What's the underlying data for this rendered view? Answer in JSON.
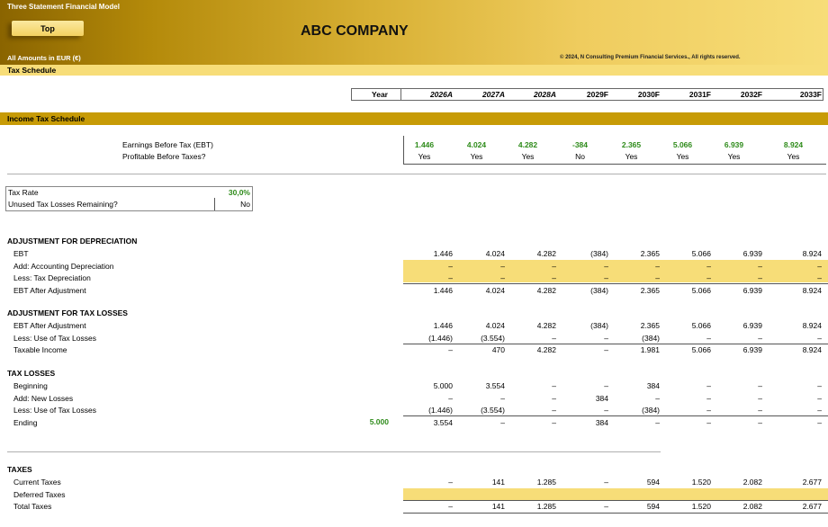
{
  "header": {
    "app_title": "Three Statement Financial Model",
    "top_button": "Top",
    "company": "ABC COMPANY",
    "amounts_label": "All Amounts in  EUR (€)",
    "copyright": "© 2024, N Consulting Premium Financial Services., All rights reserved."
  },
  "schedule_title": "Tax Schedule",
  "year_label": "Year",
  "years": [
    "2026A",
    "2027A",
    "2028A",
    "2029F",
    "2030F",
    "2031F",
    "2032F",
    "2033F"
  ],
  "income_tax_title": "Income Tax Schedule",
  "summary": {
    "ebt_label": "Earnings Before Tax (EBT)",
    "ebt": [
      "1.446",
      "4.024",
      "4.282",
      "-384",
      "2.365",
      "5.066",
      "6.939",
      "8.924"
    ],
    "profitable_label": "Profitable Before Taxes?",
    "profitable": [
      "Yes",
      "Yes",
      "Yes",
      "No",
      "Yes",
      "Yes",
      "Yes",
      "Yes"
    ]
  },
  "inputs": {
    "tax_rate_label": "Tax Rate",
    "tax_rate": "30,0%",
    "unused_label": "Unused Tax Losses Remaining?",
    "unused": "No"
  },
  "depreciation": {
    "title": "ADJUSTMENT FOR DEPRECIATION",
    "rows": [
      {
        "label": "EBT",
        "values": [
          "1.446",
          "4.024",
          "4.282",
          "(384)",
          "2.365",
          "5.066",
          "6.939",
          "8.924"
        ]
      },
      {
        "label": "Add: Accounting Depreciation",
        "values": [
          "–",
          "–",
          "–",
          "–",
          "–",
          "–",
          "–",
          "–"
        ]
      },
      {
        "label": "Less: Tax Depreciation",
        "values": [
          "–",
          "–",
          "–",
          "–",
          "–",
          "–",
          "–",
          "–"
        ]
      },
      {
        "label": "EBT After Adjustment",
        "values": [
          "1.446",
          "4.024",
          "4.282",
          "(384)",
          "2.365",
          "5.066",
          "6.939",
          "8.924"
        ]
      }
    ]
  },
  "tax_loss_adj": {
    "title": "ADJUSTMENT FOR TAX LOSSES",
    "rows": [
      {
        "label": "EBT After Adjustment",
        "values": [
          "1.446",
          "4.024",
          "4.282",
          "(384)",
          "2.365",
          "5.066",
          "6.939",
          "8.924"
        ]
      },
      {
        "label": "Less: Use of Tax Losses",
        "values": [
          "(1.446)",
          "(3.554)",
          "–",
          "–",
          "(384)",
          "–",
          "–",
          "–"
        ]
      },
      {
        "label": "Taxable Income",
        "values": [
          "–",
          "470",
          "4.282",
          "–",
          "1.981",
          "5.066",
          "6.939",
          "8.924"
        ]
      }
    ]
  },
  "tax_losses": {
    "title": "TAX LOSSES",
    "rows": [
      {
        "label": "Beginning",
        "values": [
          "5.000",
          "3.554",
          "–",
          "–",
          "384",
          "–",
          "–",
          "–"
        ]
      },
      {
        "label": "Add: New Losses",
        "values": [
          "–",
          "–",
          "–",
          "384",
          "–",
          "–",
          "–",
          "–"
        ]
      },
      {
        "label": "Less: Use of Tax Losses",
        "values": [
          "(1.446)",
          "(3.554)",
          "–",
          "–",
          "(384)",
          "–",
          "–",
          "–"
        ]
      },
      {
        "label": "Ending",
        "values": [
          "3.554",
          "–",
          "–",
          "384",
          "–",
          "–",
          "–",
          "–"
        ]
      }
    ],
    "opening_balance": "5.000"
  },
  "taxes": {
    "title": "TAXES",
    "rows": [
      {
        "label": "Current Taxes",
        "values": [
          "–",
          "141",
          "1.285",
          "–",
          "594",
          "1.520",
          "2.082",
          "2.677"
        ]
      },
      {
        "label": "Deferred Taxes",
        "values": [
          "",
          "",
          "",
          "",
          "",
          "",
          "",
          ""
        ]
      },
      {
        "label": "Total Taxes",
        "values": [
          "–",
          "141",
          "1.285",
          "–",
          "594",
          "1.520",
          "2.082",
          "2.677"
        ]
      }
    ]
  },
  "colors": {
    "header_gold": "#c79b06",
    "band_yellow": "#f7dd78",
    "positive_green": "#2e8b1a"
  }
}
